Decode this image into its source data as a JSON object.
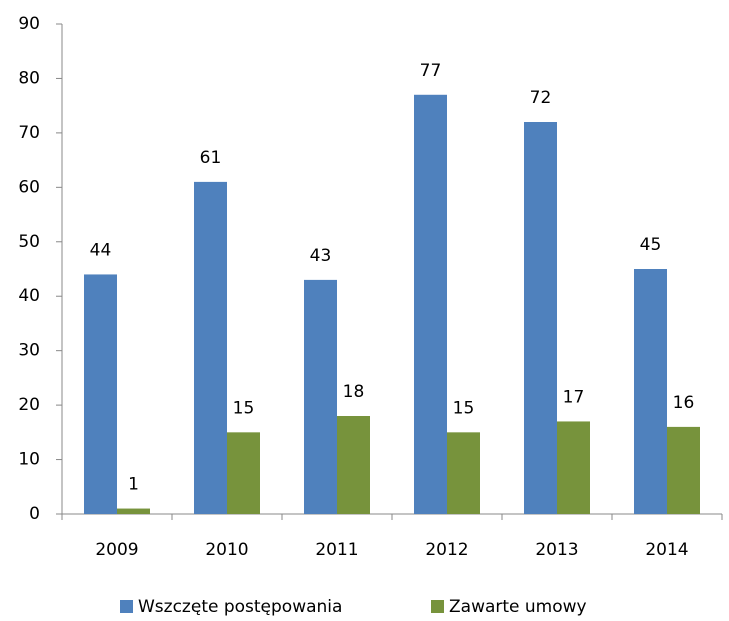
{
  "chart_data": {
    "type": "bar",
    "categories": [
      "2009",
      "2010",
      "2011",
      "2012",
      "2013",
      "2014"
    ],
    "series": [
      {
        "name": "Wszczęte postępowania",
        "color": "#4f81bd",
        "values": [
          44,
          61,
          43,
          77,
          72,
          45
        ]
      },
      {
        "name": "Zawarte umowy",
        "color": "#77933c",
        "values": [
          1,
          15,
          18,
          15,
          17,
          16
        ]
      }
    ],
    "ylim": [
      0,
      90
    ],
    "yticks": [
      0,
      10,
      20,
      30,
      40,
      50,
      60,
      70,
      80,
      90
    ],
    "grid": false,
    "legend": "bottom",
    "data_labels": true
  }
}
